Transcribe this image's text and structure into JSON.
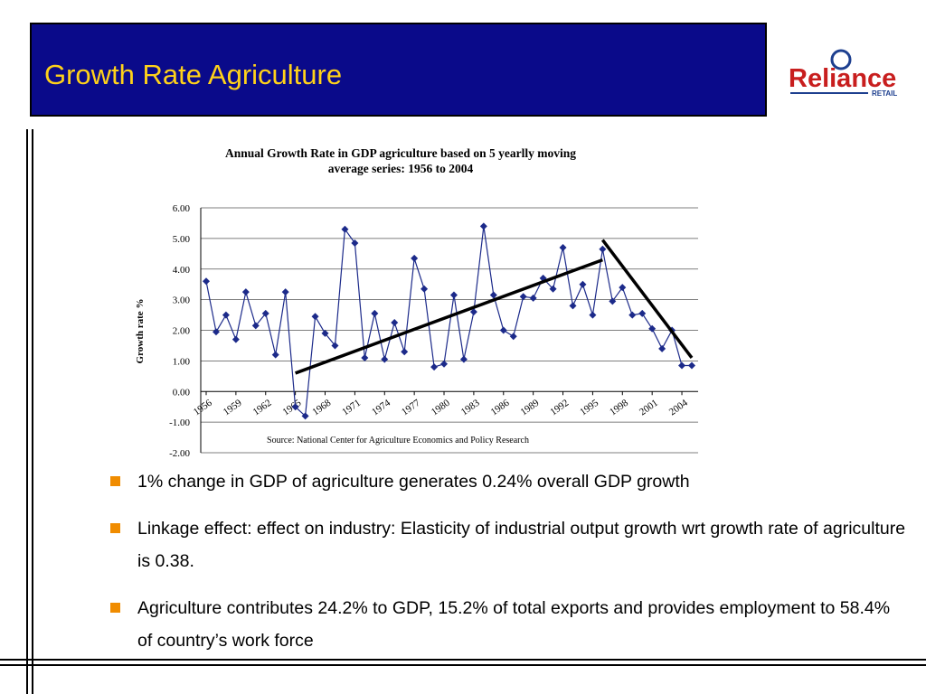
{
  "slide": {
    "title": "Growth Rate Agriculture",
    "logo_text": "Reliance",
    "logo_sub": "RETAIL"
  },
  "bullets": [
    "1% change in GDP of agriculture generates 0.24% overall GDP growth",
    "Linkage effect: effect on industry: Elasticity of industrial output growth wrt growth rate of agriculture is 0.38.",
    "Agriculture  contributes  24.2% to GDP, 15.2% of total exports and provides employment to 58.4% of country’s work force"
  ],
  "chart_data": {
    "type": "line",
    "title": "Annual Growth Rate in GDP agriculture based on 5 yearlly moving",
    "subtitle": "average series: 1956 to 2004",
    "xlabel": "",
    "ylabel": "Growth rate %",
    "ylim": [
      -2,
      6
    ],
    "yticks": [
      "6.00",
      "5.00",
      "4.00",
      "3.00",
      "2.00",
      "1.00",
      "0.00",
      "-1.00",
      "-2.00"
    ],
    "xticks": [
      "1956",
      "1959",
      "1962",
      "1965",
      "1968",
      "1971",
      "1974",
      "1977",
      "1980",
      "1983",
      "1986",
      "1989",
      "1992",
      "1995",
      "1998",
      "2001",
      "2004"
    ],
    "source": "Source: National Center for Agriculture Economics and Policy Research",
    "marker_color": "#1c2a8a",
    "grid": true,
    "series": [
      {
        "x": [
          1956,
          1957,
          1958,
          1959,
          1960,
          1961,
          1962,
          1963,
          1964,
          1965,
          1966,
          1967,
          1968,
          1969,
          1970,
          1971,
          1972,
          1973,
          1974,
          1975,
          1976,
          1977,
          1978,
          1979,
          1980,
          1981,
          1982,
          1983,
          1984,
          1985,
          1986,
          1987,
          1988,
          1989,
          1990,
          1991,
          1992,
          1993,
          1994,
          1995,
          1996,
          1997,
          1998,
          1999,
          2000,
          2001,
          2002,
          2003,
          2004,
          2005
        ],
        "values": [
          3.6,
          1.95,
          2.5,
          1.7,
          3.25,
          2.15,
          2.55,
          1.2,
          3.25,
          -0.5,
          -0.8,
          2.45,
          1.9,
          1.5,
          5.3,
          4.85,
          1.1,
          2.55,
          1.05,
          2.25,
          1.3,
          4.35,
          3.35,
          0.8,
          0.9,
          3.15,
          1.05,
          2.6,
          5.4,
          3.15,
          2.0,
          1.8,
          3.1,
          3.05,
          3.7,
          3.35,
          4.7,
          2.8,
          3.5,
          2.5,
          4.65,
          2.95,
          3.4,
          2.5,
          2.55,
          2.05,
          1.4,
          2.0,
          0.85,
          0.85
        ]
      }
    ],
    "trendlines": [
      {
        "x": [
          1965,
          1996
        ],
        "values": [
          0.6,
          4.3
        ]
      },
      {
        "x": [
          1996,
          2005
        ],
        "values": [
          4.95,
          1.1
        ]
      }
    ]
  }
}
